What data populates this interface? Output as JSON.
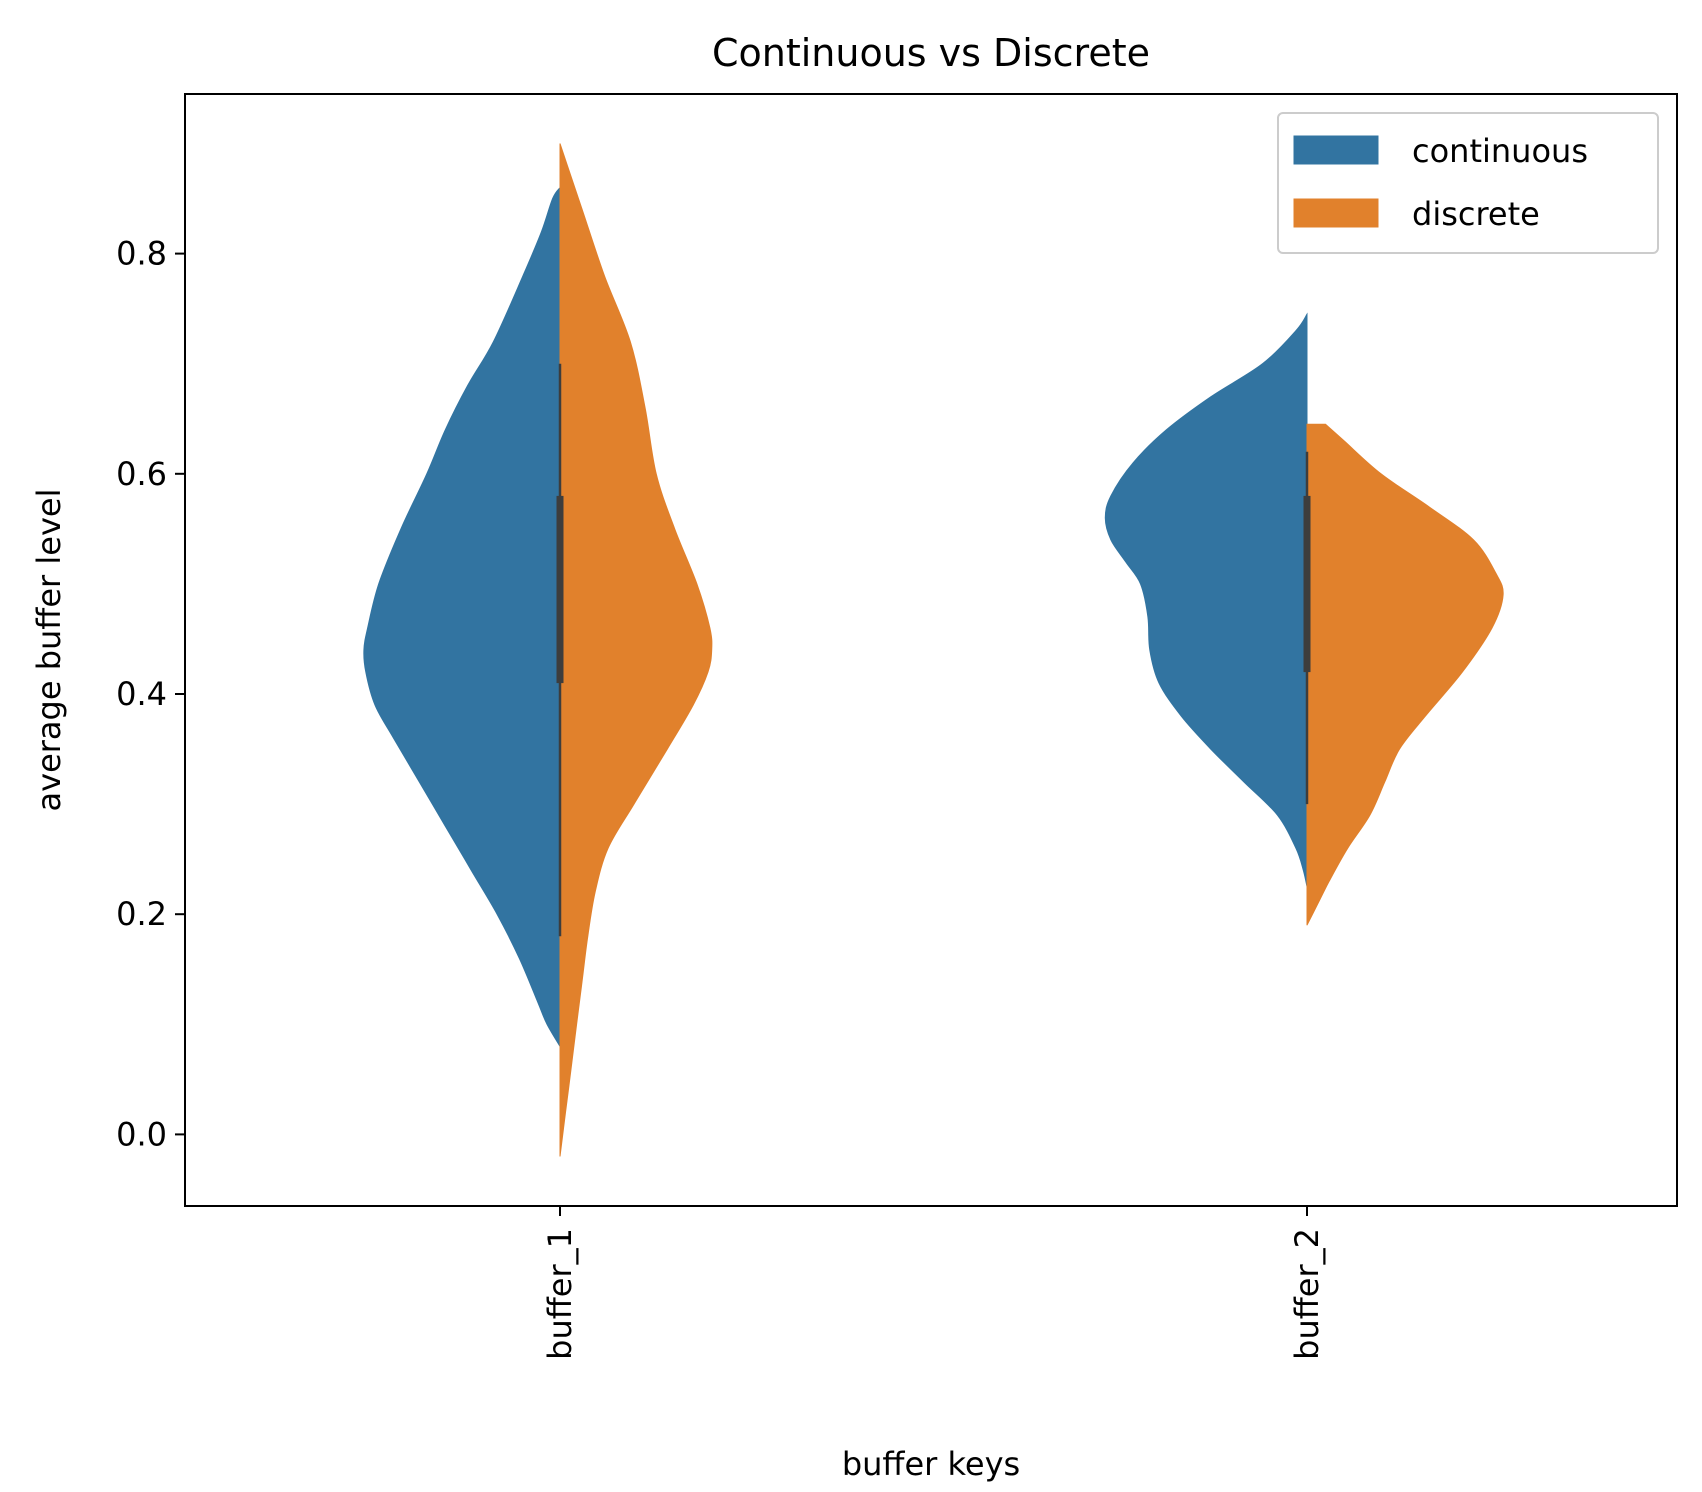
{
  "chart_data": {
    "type": "violin",
    "split": true,
    "title": "Continuous vs Discrete",
    "xlabel": "buffer keys",
    "ylabel": "average buffer level",
    "categories": [
      "buffer_1",
      "buffer_2"
    ],
    "ylim": [
      -0.065,
      0.945
    ],
    "yticks": [
      0.0,
      0.2,
      0.4,
      0.6,
      0.8
    ],
    "ytick_labels": [
      "0.0",
      "0.2",
      "0.4",
      "0.6",
      "0.8"
    ],
    "legend": {
      "position": "top-right",
      "entries": [
        "continuous",
        "discrete"
      ]
    },
    "series": [
      {
        "name": "continuous",
        "color": "#3274a1",
        "side": "left",
        "violins": [
          {
            "category": "buffer_1",
            "range": [
              0.08,
              0.86
            ],
            "quartiles": [
              0.41,
              0.46,
              0.58
            ],
            "whiskers": [
              0.18,
              0.7
            ],
            "profile": [
              [
                0.86,
                0.0
              ],
              [
                0.85,
                0.02
              ],
              [
                0.82,
                0.05
              ],
              [
                0.78,
                0.1
              ],
              [
                0.72,
                0.18
              ],
              [
                0.68,
                0.25
              ],
              [
                0.64,
                0.31
              ],
              [
                0.6,
                0.36
              ],
              [
                0.55,
                0.43
              ],
              [
                0.5,
                0.49
              ],
              [
                0.46,
                0.52
              ],
              [
                0.44,
                0.53
              ],
              [
                0.42,
                0.525
              ],
              [
                0.39,
                0.5
              ],
              [
                0.36,
                0.45
              ],
              [
                0.32,
                0.38
              ],
              [
                0.28,
                0.31
              ],
              [
                0.24,
                0.24
              ],
              [
                0.2,
                0.17
              ],
              [
                0.16,
                0.11
              ],
              [
                0.12,
                0.06
              ],
              [
                0.1,
                0.035
              ],
              [
                0.08,
                0.0
              ]
            ]
          },
          {
            "category": "buffer_2",
            "range": [
              0.225,
              0.745
            ],
            "quartiles": [
              0.42,
              0.52,
              0.58
            ],
            "whiskers": [
              0.3,
              0.62
            ],
            "profile": [
              [
                0.745,
                0.0
              ],
              [
                0.73,
                0.03
              ],
              [
                0.7,
                0.12
              ],
              [
                0.67,
                0.26
              ],
              [
                0.64,
                0.38
              ],
              [
                0.61,
                0.47
              ],
              [
                0.58,
                0.53
              ],
              [
                0.56,
                0.545
              ],
              [
                0.54,
                0.53
              ],
              [
                0.52,
                0.49
              ],
              [
                0.5,
                0.45
              ],
              [
                0.47,
                0.43
              ],
              [
                0.44,
                0.425
              ],
              [
                0.41,
                0.4
              ],
              [
                0.38,
                0.34
              ],
              [
                0.35,
                0.26
              ],
              [
                0.32,
                0.17
              ],
              [
                0.29,
                0.08
              ],
              [
                0.26,
                0.03
              ],
              [
                0.24,
                0.01
              ],
              [
                0.225,
                0.0
              ]
            ]
          }
        ]
      },
      {
        "name": "discrete",
        "color": "#e1812c",
        "side": "right",
        "violins": [
          {
            "category": "buffer_1",
            "range": [
              -0.02,
              0.9
            ],
            "quartiles": [
              0.41,
              0.46,
              0.58
            ],
            "whiskers": [
              0.18,
              0.7
            ],
            "profile": [
              [
                0.9,
                0.0
              ],
              [
                0.88,
                0.02
              ],
              [
                0.84,
                0.06
              ],
              [
                0.78,
                0.12
              ],
              [
                0.72,
                0.19
              ],
              [
                0.66,
                0.23
              ],
              [
                0.6,
                0.26
              ],
              [
                0.55,
                0.31
              ],
              [
                0.5,
                0.37
              ],
              [
                0.46,
                0.405
              ],
              [
                0.44,
                0.41
              ],
              [
                0.42,
                0.4
              ],
              [
                0.39,
                0.36
              ],
              [
                0.35,
                0.29
              ],
              [
                0.3,
                0.2
              ],
              [
                0.26,
                0.13
              ],
              [
                0.22,
                0.095
              ],
              [
                0.18,
                0.075
              ],
              [
                0.14,
                0.06
              ],
              [
                0.1,
                0.045
              ],
              [
                0.06,
                0.03
              ],
              [
                0.02,
                0.015
              ],
              [
                -0.02,
                0.0
              ]
            ]
          },
          {
            "category": "buffer_2",
            "range": [
              0.19,
              0.645
            ],
            "quartiles": [
              0.42,
              0.52,
              0.58
            ],
            "whiskers": [
              0.3,
              0.62
            ],
            "profile": [
              [
                0.645,
                0.05
              ],
              [
                0.63,
                0.1
              ],
              [
                0.6,
                0.2
              ],
              [
                0.57,
                0.33
              ],
              [
                0.54,
                0.45
              ],
              [
                0.51,
                0.51
              ],
              [
                0.49,
                0.53
              ],
              [
                0.46,
                0.5
              ],
              [
                0.42,
                0.42
              ],
              [
                0.38,
                0.32
              ],
              [
                0.35,
                0.25
              ],
              [
                0.32,
                0.21
              ],
              [
                0.29,
                0.17
              ],
              [
                0.26,
                0.11
              ],
              [
                0.23,
                0.06
              ],
              [
                0.21,
                0.03
              ],
              [
                0.19,
                0.0
              ]
            ]
          }
        ]
      }
    ]
  }
}
